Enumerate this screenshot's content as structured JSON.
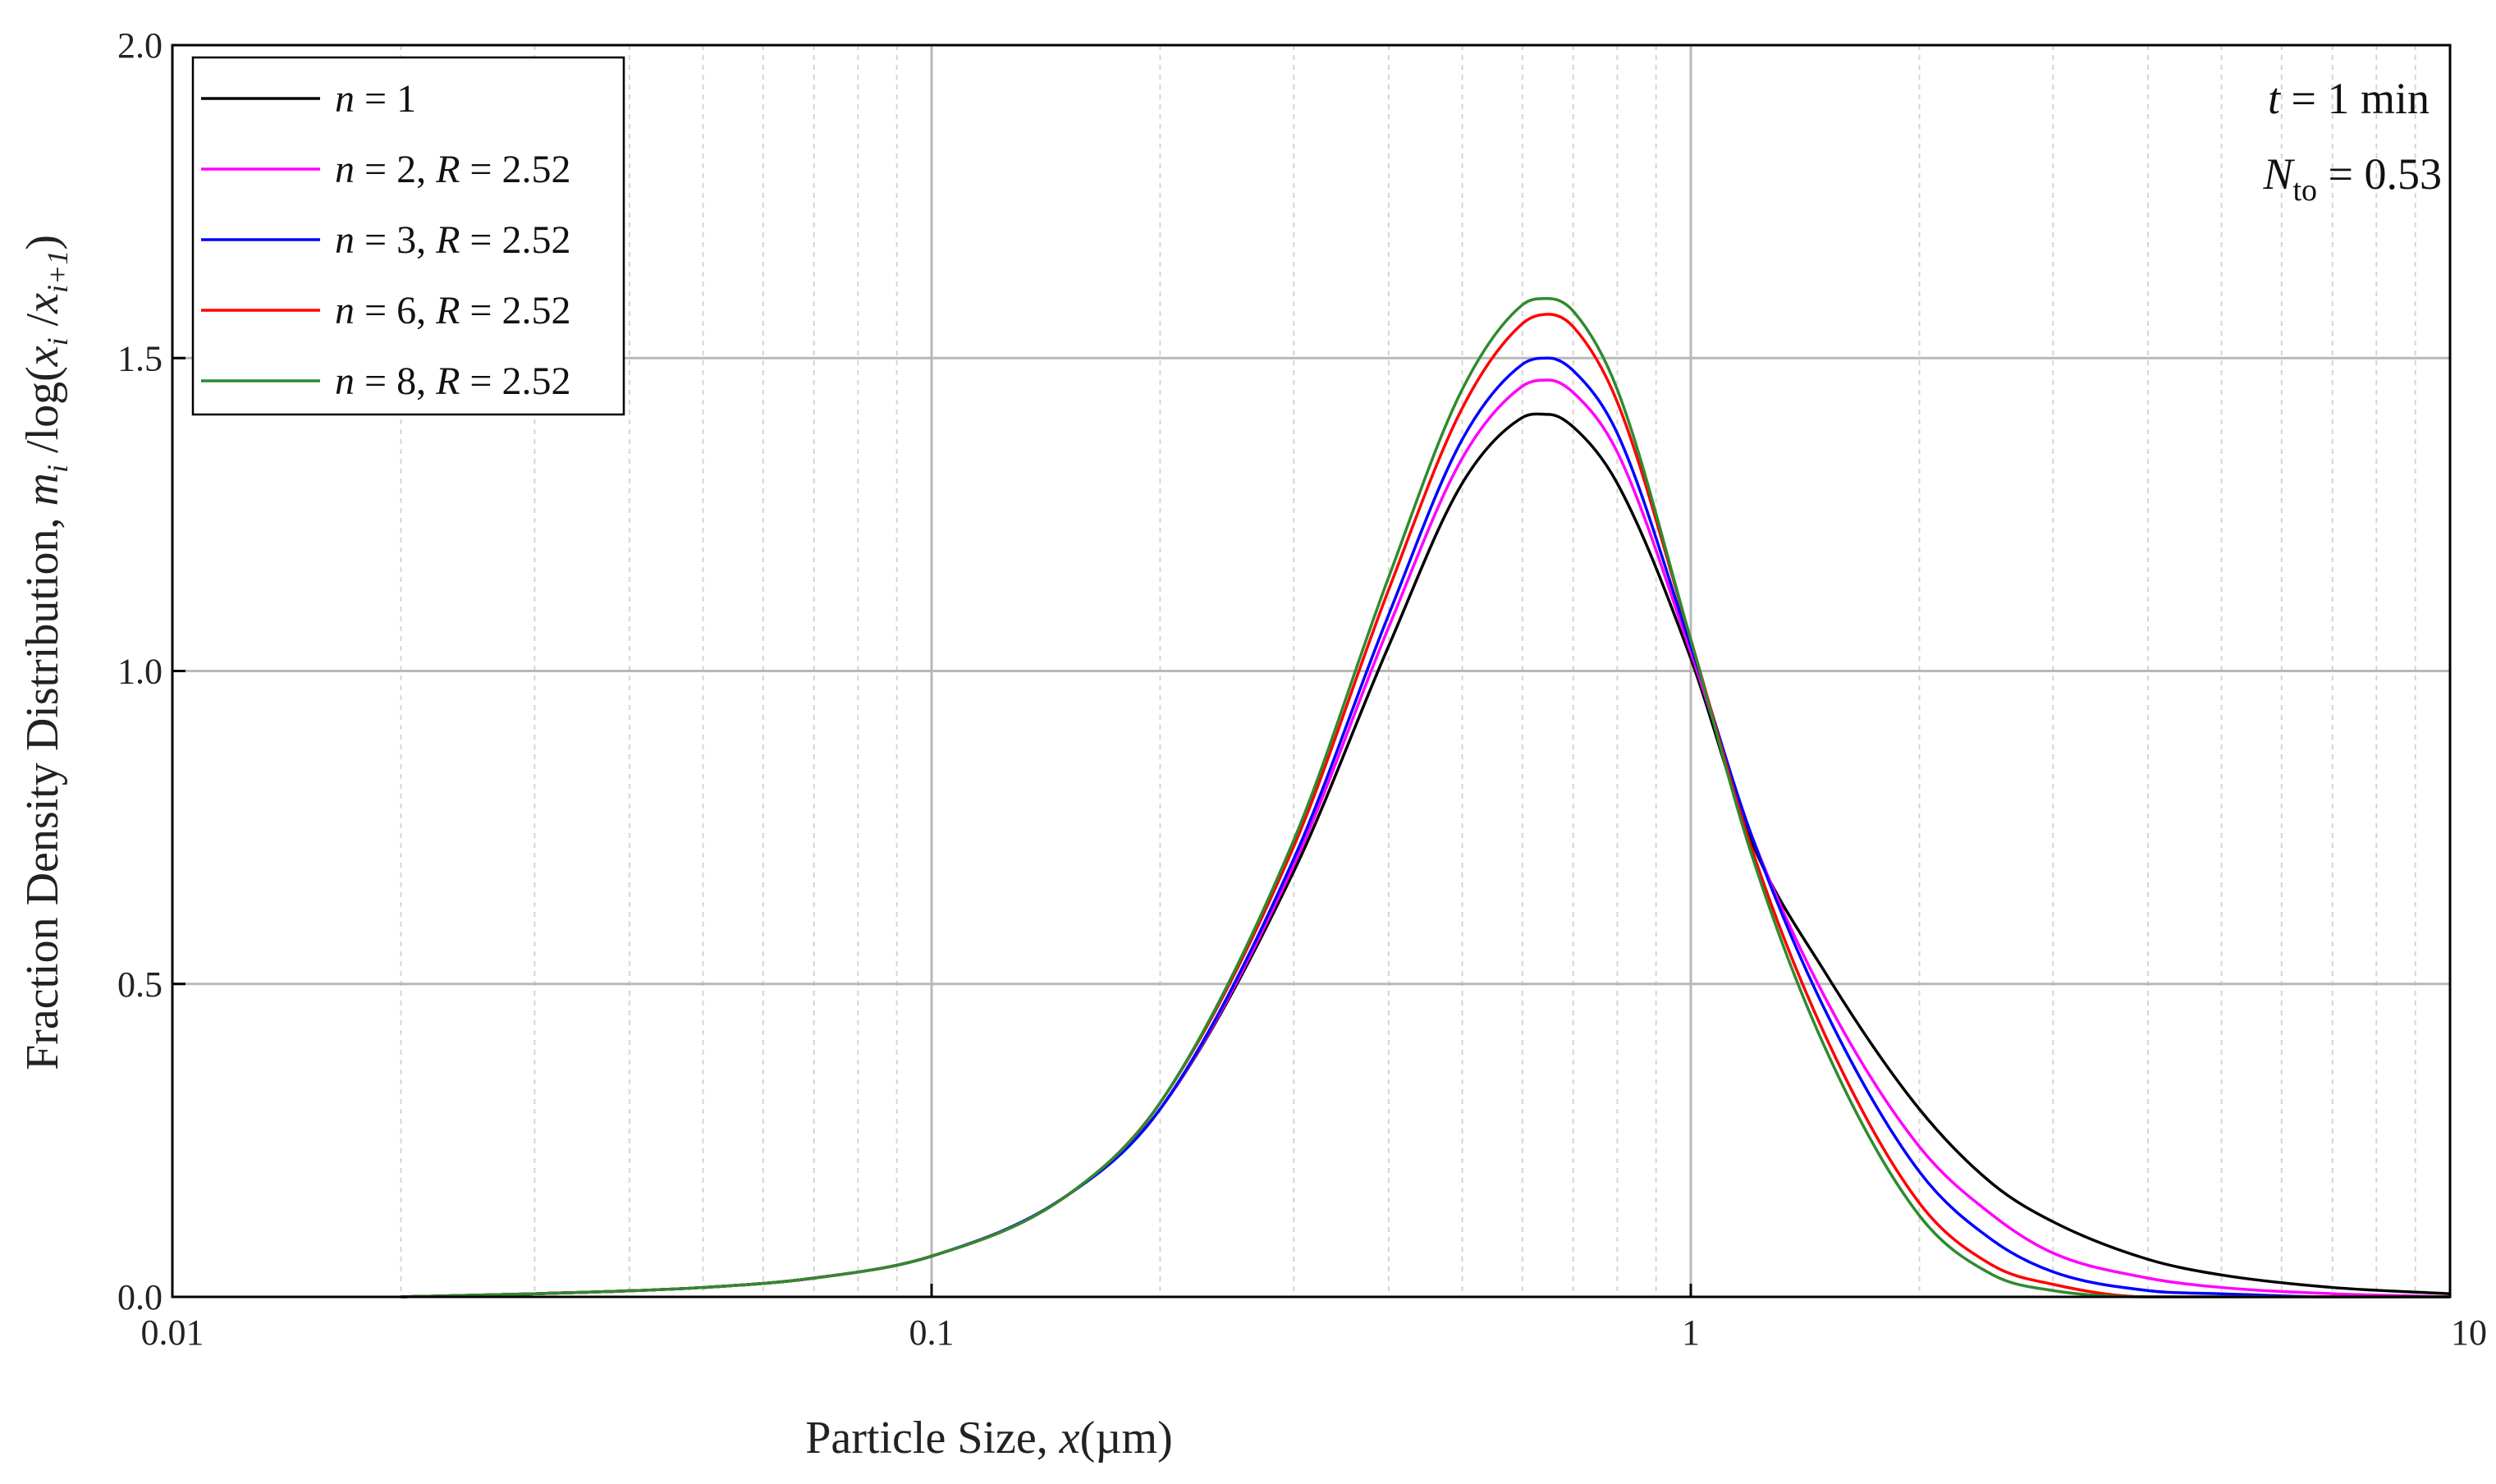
{
  "chart_data": {
    "type": "line",
    "xscale": "log",
    "xlim": [
      0.01,
      10
    ],
    "ylim": [
      0.0,
      2.0
    ],
    "grid": true,
    "legend_position": "top-left",
    "xlabel": "Particle Size, x(µm)",
    "ylabel": "Fraction Density Distribution, m_i /log(x_i /x_i+1)",
    "x_ticks": [
      "0.01",
      "0.1",
      "1",
      "10"
    ],
    "y_ticks": [
      "0.0",
      "0.5",
      "1.0",
      "1.5",
      "2.0"
    ],
    "annotations": [
      "t = 1 min",
      "N_to = 0.53"
    ],
    "x": [
      0.02,
      0.03,
      0.05,
      0.07,
      0.1,
      0.15,
      0.2,
      0.3,
      0.4,
      0.5,
      0.6,
      0.65,
      0.7,
      0.8,
      1.0,
      1.2,
      1.5,
      2.0,
      2.5,
      3.0,
      4.0,
      5.0,
      7.0,
      10.0
    ],
    "series": [
      {
        "name": "n = 1",
        "color": "#000000",
        "values": [
          0.0,
          0.005,
          0.015,
          0.03,
          0.065,
          0.16,
          0.3,
          0.68,
          1.04,
          1.3,
          1.405,
          1.41,
          1.39,
          1.3,
          1.02,
          0.73,
          0.52,
          0.3,
          0.18,
          0.12,
          0.06,
          0.035,
          0.015,
          0.005
        ]
      },
      {
        "name": "n = 2, R = 2.52",
        "color": "#ff00ff",
        "values": [
          0.0,
          0.005,
          0.015,
          0.03,
          0.065,
          0.16,
          0.3,
          0.69,
          1.07,
          1.34,
          1.455,
          1.465,
          1.445,
          1.35,
          1.03,
          0.74,
          0.48,
          0.24,
          0.13,
          0.07,
          0.03,
          0.015,
          0.005,
          0.0
        ]
      },
      {
        "name": "n = 3, R = 2.52",
        "color": "#0000ff",
        "values": [
          0.0,
          0.005,
          0.015,
          0.03,
          0.065,
          0.16,
          0.3,
          0.7,
          1.09,
          1.37,
          1.49,
          1.5,
          1.48,
          1.38,
          1.04,
          0.74,
          0.46,
          0.2,
          0.09,
          0.04,
          0.01,
          0.005,
          0.0,
          0.0
        ]
      },
      {
        "name": "n = 6, R = 2.52",
        "color": "#ff0000",
        "values": [
          0.0,
          0.005,
          0.015,
          0.03,
          0.065,
          0.16,
          0.31,
          0.72,
          1.13,
          1.42,
          1.555,
          1.57,
          1.55,
          1.43,
          1.05,
          0.72,
          0.42,
          0.15,
          0.05,
          0.02,
          0.0,
          0.0,
          0.0,
          0.0
        ]
      },
      {
        "name": "n = 8, R = 2.52",
        "color": "#2e8b2e",
        "values": [
          0.0,
          0.005,
          0.015,
          0.03,
          0.065,
          0.16,
          0.31,
          0.73,
          1.15,
          1.45,
          1.585,
          1.595,
          1.575,
          1.45,
          1.05,
          0.71,
          0.4,
          0.13,
          0.035,
          0.01,
          0.0,
          0.0,
          0.0,
          0.0
        ]
      }
    ]
  },
  "legend": {
    "items": [
      {
        "var": "n",
        "rest": " = 1"
      },
      {
        "var": "n",
        "rest": " = 2, ",
        "var2": "R",
        "rest2": " = 2.52"
      },
      {
        "var": "n",
        "rest": " = 3, ",
        "var2": "R",
        "rest2": " = 2.52"
      },
      {
        "var": "n",
        "rest": " = 6, ",
        "var2": "R",
        "rest2": " = 2.52"
      },
      {
        "var": "n",
        "rest": " = 8, ",
        "var2": "R",
        "rest2": " = 2.52"
      }
    ]
  },
  "annotation": {
    "t_var": "t",
    "t_rest": " = 1 min",
    "n_var": "N",
    "n_sub": "to",
    "n_rest": " = 0.53"
  },
  "axis_titles": {
    "x_main": "Particle Size, ",
    "x_var": "x",
    "x_unit": "(µm)",
    "y_main": "Fraction Density Distribution, ",
    "y_m": "m",
    "y_i": "i",
    "y_log": " /log(",
    "y_x1": "x",
    "y_i1": "i",
    "y_slash": " /",
    "y_x2": "x",
    "y_i2": "i+1",
    "y_close": ")"
  }
}
